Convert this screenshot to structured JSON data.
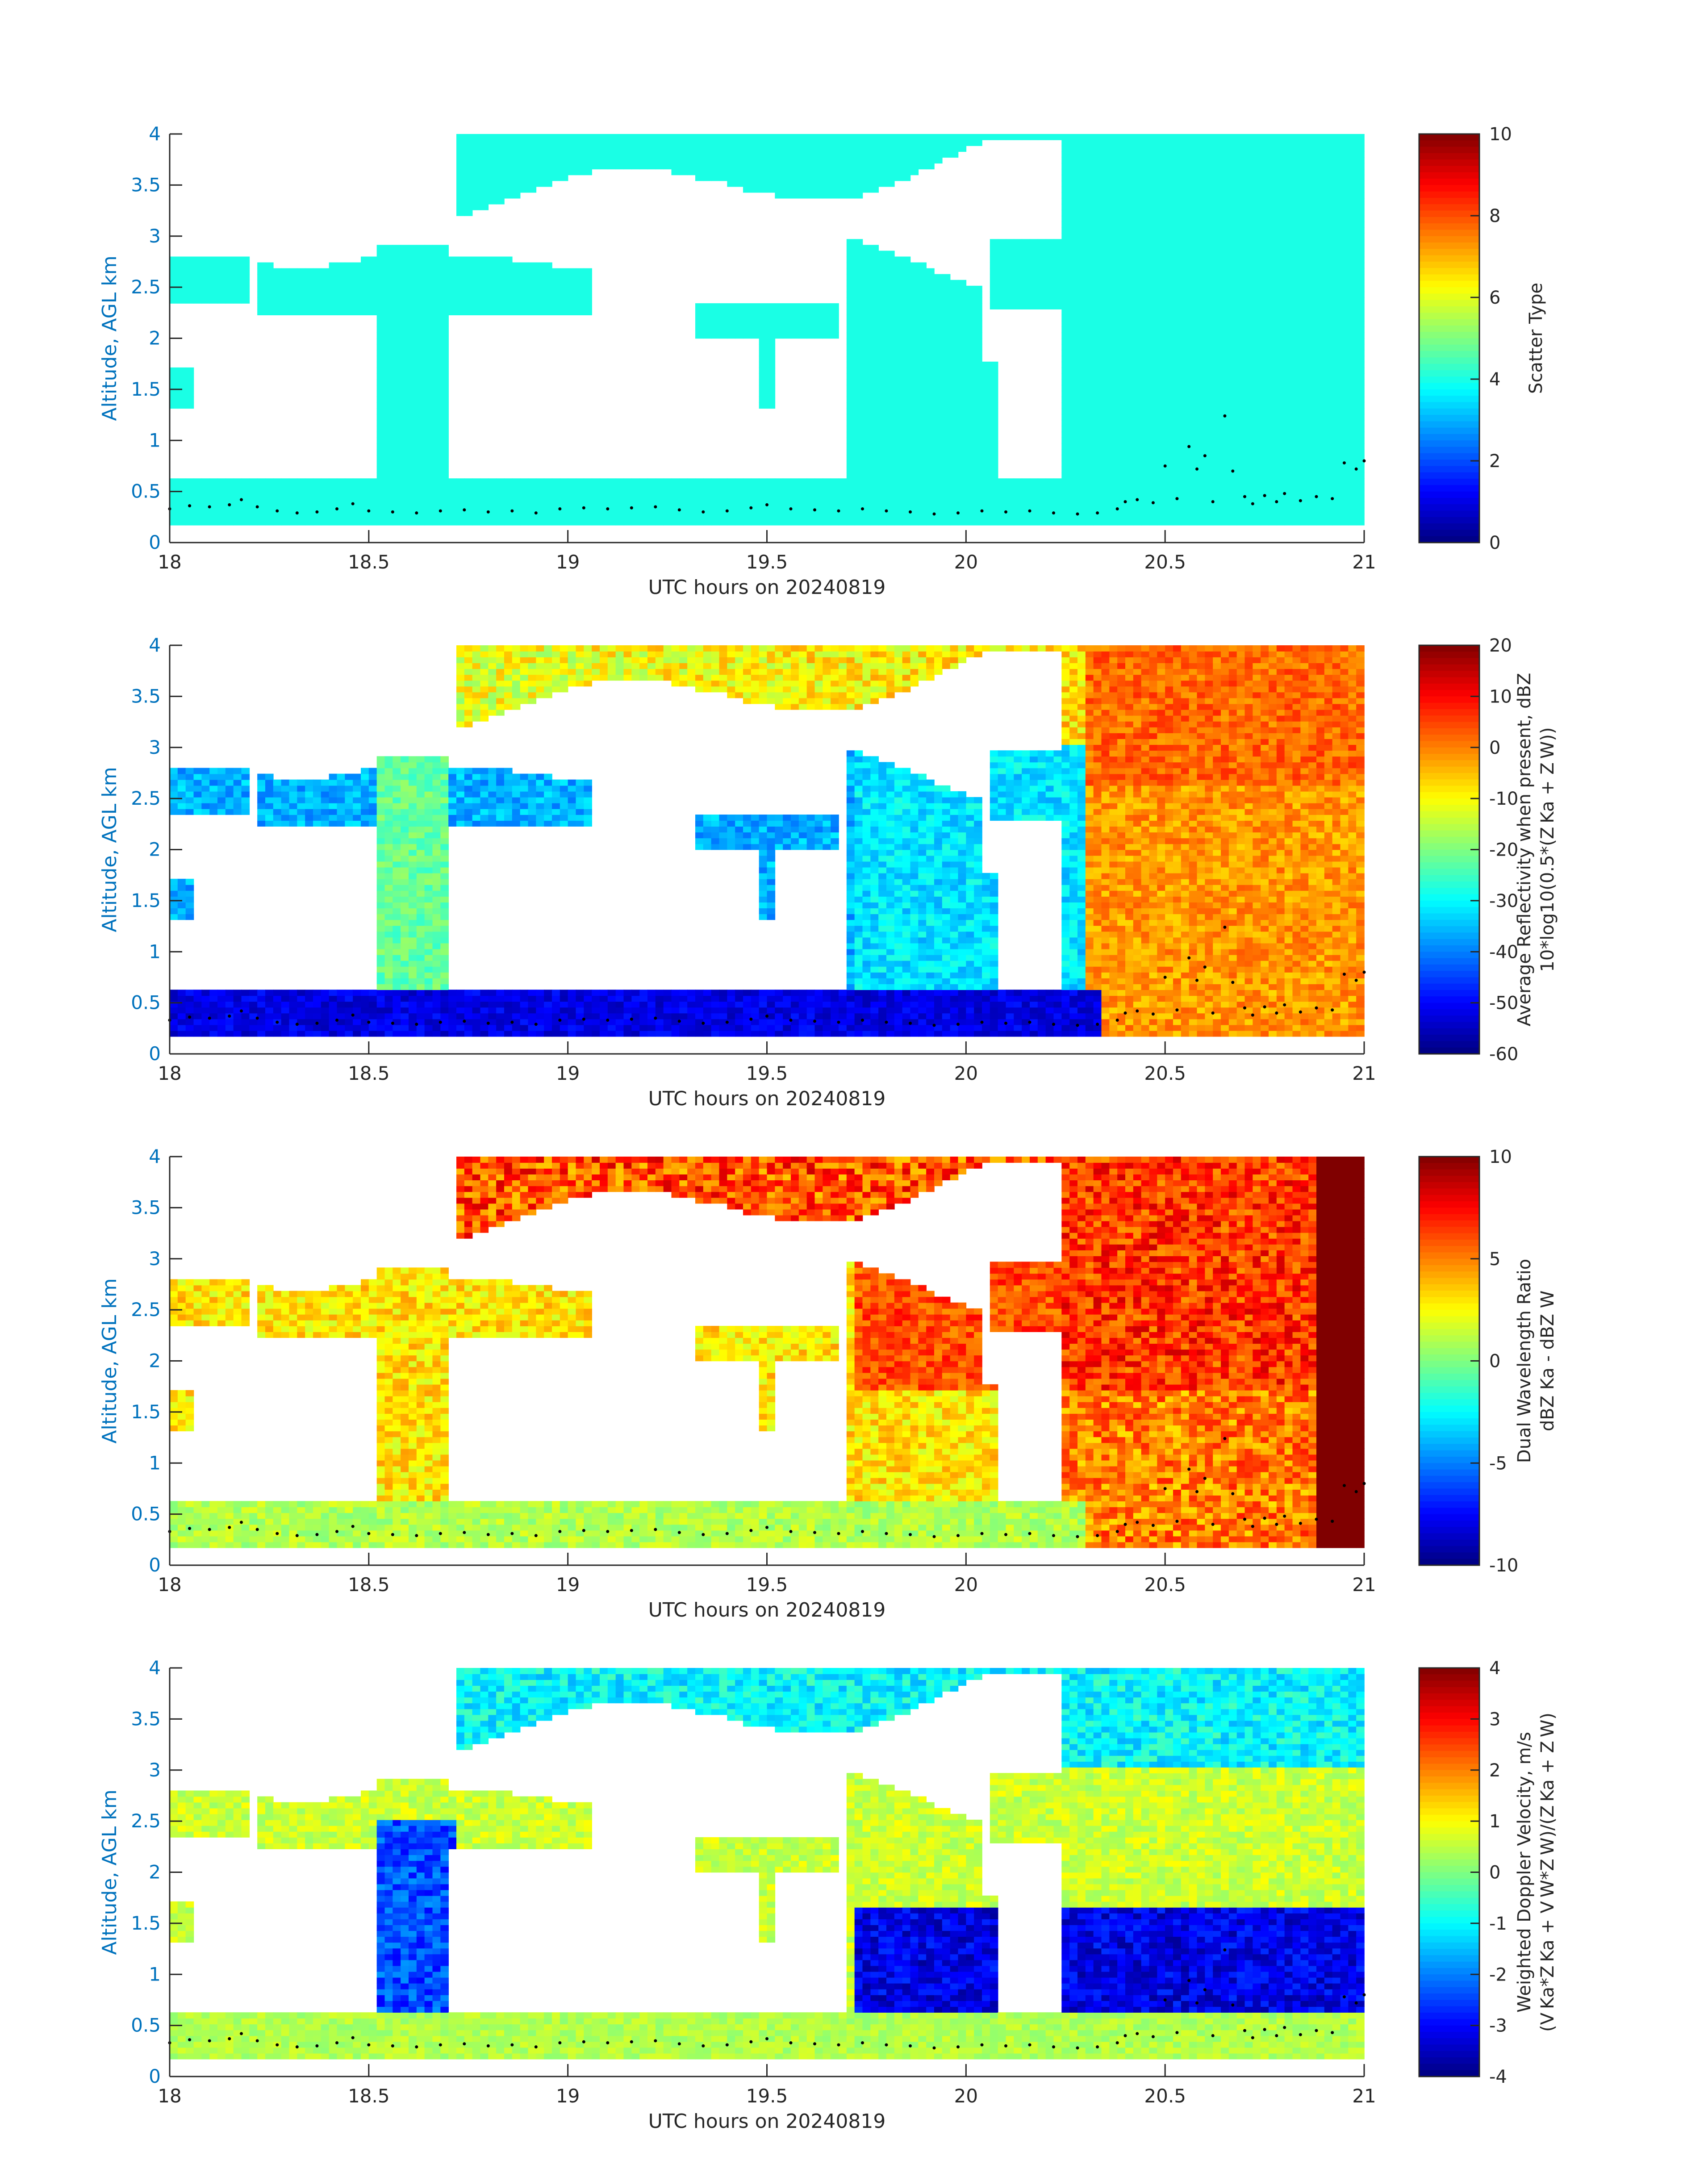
{
  "chart_data": [
    {
      "type": "heatmap",
      "ylabel": "Altitude, AGL km",
      "xlabel": "UTC hours on 20240819",
      "xlim": [
        18,
        21
      ],
      "ylim": [
        0,
        4
      ],
      "xticks": [
        "18",
        "18.5",
        "19",
        "19.5",
        "20",
        "20.5",
        "21"
      ],
      "yticks": [
        "0",
        "0.5",
        "1",
        "1.5",
        "2",
        "2.5",
        "3",
        "3.5",
        "4"
      ],
      "colorbar": {
        "label_lines": [
          "Scatter Type"
        ],
        "ticks": [
          "10",
          "8",
          "6",
          "4",
          "2",
          "0"
        ],
        "clim": [
          0,
          10
        ]
      },
      "field": "scatter_type"
    },
    {
      "type": "heatmap",
      "ylabel": "Altitude, AGL km",
      "xlabel": "UTC hours on 20240819",
      "xlim": [
        18,
        21
      ],
      "ylim": [
        0,
        4
      ],
      "xticks": [
        "18",
        "18.5",
        "19",
        "19.5",
        "20",
        "20.5",
        "21"
      ],
      "yticks": [
        "0",
        "0.5",
        "1",
        "1.5",
        "2",
        "2.5",
        "3",
        "3.5",
        "4"
      ],
      "colorbar": {
        "label_lines": [
          "Average Reflectivity when present, dBZ",
          "10*log10(0.5*(Z_Ka + Z_W))"
        ],
        "ticks": [
          "20",
          "10",
          "0",
          "-10",
          "-20",
          "-30",
          "-40",
          "-50",
          "-60"
        ],
        "clim": [
          -60,
          20
        ]
      },
      "field": "reflectivity"
    },
    {
      "type": "heatmap",
      "ylabel": "Altitude, AGL km",
      "xlabel": "UTC hours on 20240819",
      "xlim": [
        18,
        21
      ],
      "ylim": [
        0,
        4
      ],
      "xticks": [
        "18",
        "18.5",
        "19",
        "19.5",
        "20",
        "20.5",
        "21"
      ],
      "yticks": [
        "0",
        "0.5",
        "1",
        "1.5",
        "2",
        "2.5",
        "3",
        "3.5",
        "4"
      ],
      "colorbar": {
        "label_lines": [
          "Dual Wavelength Ratio",
          "dBZ Ka - dBZ W"
        ],
        "ticks": [
          "10",
          "5",
          "0",
          "-5",
          "-10"
        ],
        "clim": [
          -10,
          10
        ]
      },
      "field": "dwr"
    },
    {
      "type": "heatmap",
      "ylabel": "Altitude, AGL km",
      "xlabel": "UTC hours on 20240819",
      "xlim": [
        18,
        21
      ],
      "ylim": [
        0,
        4
      ],
      "xticks": [
        "18",
        "18.5",
        "19",
        "19.5",
        "20",
        "20.5",
        "21"
      ],
      "yticks": [
        "0",
        "0.5",
        "1",
        "1.5",
        "2",
        "2.5",
        "3",
        "3.5",
        "4"
      ],
      "colorbar": {
        "label_lines": [
          "Weighted Doppler Velocity, m/s",
          "(V_Ka*Z_Ka + V_W*Z_W)/(Z_Ka + Z_W)"
        ],
        "ticks": [
          "4",
          "3",
          "2",
          "1",
          "0",
          "-1",
          "-2",
          "-3",
          "-4"
        ],
        "clim": [
          -4,
          4
        ]
      },
      "field": "velocity"
    }
  ],
  "cloud_base_points_km": [
    [
      18.0,
      0.33
    ],
    [
      18.05,
      0.36
    ],
    [
      18.1,
      0.35
    ],
    [
      18.15,
      0.37
    ],
    [
      18.18,
      0.42
    ],
    [
      18.22,
      0.35
    ],
    [
      18.27,
      0.31
    ],
    [
      18.32,
      0.29
    ],
    [
      18.37,
      0.3
    ],
    [
      18.42,
      0.33
    ],
    [
      18.46,
      0.38
    ],
    [
      18.5,
      0.31
    ],
    [
      18.56,
      0.3
    ],
    [
      18.62,
      0.29
    ],
    [
      18.68,
      0.31
    ],
    [
      18.74,
      0.32
    ],
    [
      18.8,
      0.3
    ],
    [
      18.86,
      0.31
    ],
    [
      18.92,
      0.29
    ],
    [
      18.98,
      0.33
    ],
    [
      19.04,
      0.34
    ],
    [
      19.1,
      0.33
    ],
    [
      19.16,
      0.34
    ],
    [
      19.22,
      0.35
    ],
    [
      19.28,
      0.32
    ],
    [
      19.34,
      0.3
    ],
    [
      19.4,
      0.31
    ],
    [
      19.46,
      0.34
    ],
    [
      19.5,
      0.37
    ],
    [
      19.56,
      0.33
    ],
    [
      19.62,
      0.32
    ],
    [
      19.68,
      0.31
    ],
    [
      19.74,
      0.33
    ],
    [
      19.8,
      0.31
    ],
    [
      19.86,
      0.3
    ],
    [
      19.92,
      0.28
    ],
    [
      19.98,
      0.29
    ],
    [
      20.04,
      0.31
    ],
    [
      20.1,
      0.3
    ],
    [
      20.16,
      0.31
    ],
    [
      20.22,
      0.29
    ],
    [
      20.28,
      0.28
    ],
    [
      20.33,
      0.29
    ],
    [
      20.38,
      0.33
    ],
    [
      20.4,
      0.4
    ],
    [
      20.43,
      0.42
    ],
    [
      20.47,
      0.39
    ],
    [
      20.5,
      0.75
    ],
    [
      20.53,
      0.43
    ],
    [
      20.56,
      0.94
    ],
    [
      20.58,
      0.72
    ],
    [
      20.6,
      0.85
    ],
    [
      20.62,
      0.4
    ],
    [
      20.65,
      1.24
    ],
    [
      20.67,
      0.7
    ],
    [
      20.7,
      0.45
    ],
    [
      20.72,
      0.38
    ],
    [
      20.75,
      0.46
    ],
    [
      20.78,
      0.4
    ],
    [
      20.8,
      0.48
    ],
    [
      20.84,
      0.41
    ],
    [
      20.88,
      0.45
    ],
    [
      20.92,
      0.43
    ],
    [
      20.95,
      0.78
    ],
    [
      20.98,
      0.72
    ],
    [
      21.0,
      0.8
    ]
  ]
}
